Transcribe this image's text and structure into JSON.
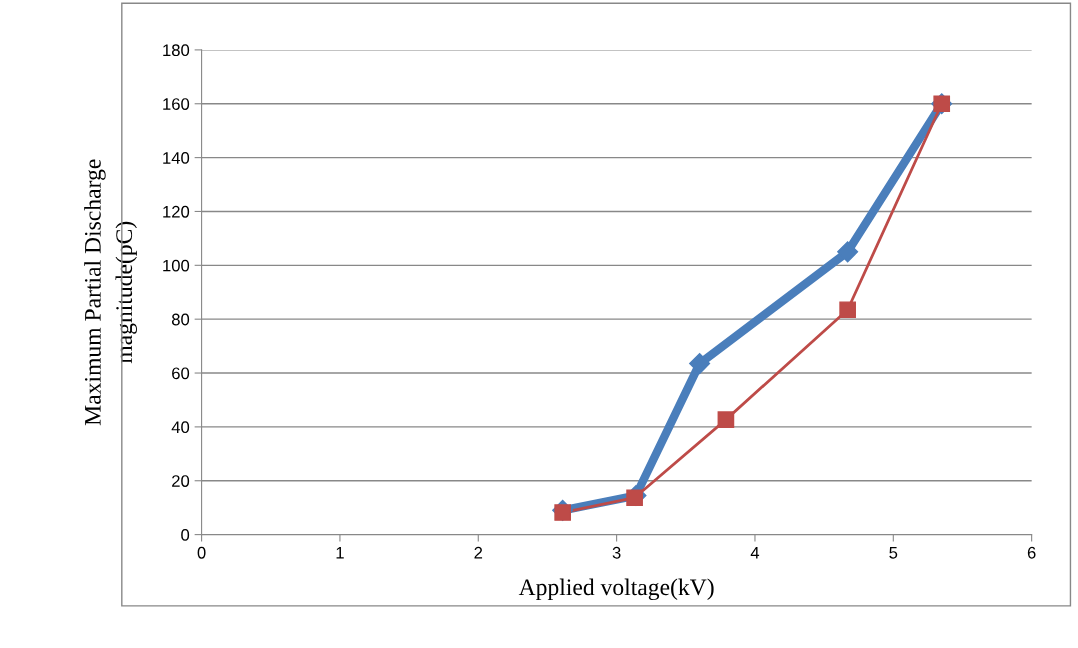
{
  "chart_data": {
    "type": "line",
    "xlabel": "Applied voltage(kV)",
    "ylabel": "Maximum Partial Discharge\nmagnitude(pC)",
    "xlim": [
      0,
      6
    ],
    "xticks": [
      0,
      1,
      2,
      3,
      4,
      5,
      6
    ],
    "ylim": [
      0,
      180
    ],
    "yticks": [
      0,
      20,
      40,
      60,
      80,
      100,
      120,
      140,
      160,
      180
    ],
    "grid": "y",
    "line_style": "solid",
    "series": [
      {
        "color": "#4a7ebb",
        "marker": "diamond",
        "x": [
          2.61,
          3.14,
          3.6,
          4.67,
          5.35
        ],
        "values": [
          9,
          14.5,
          63.5,
          105,
          160
        ]
      },
      {
        "color": "#be4b48",
        "marker": "square",
        "x": [
          2.61,
          3.13,
          3.79,
          4.67,
          5.35
        ],
        "values": [
          8.2,
          13.7,
          42.7,
          83.5,
          160
        ]
      }
    ]
  }
}
